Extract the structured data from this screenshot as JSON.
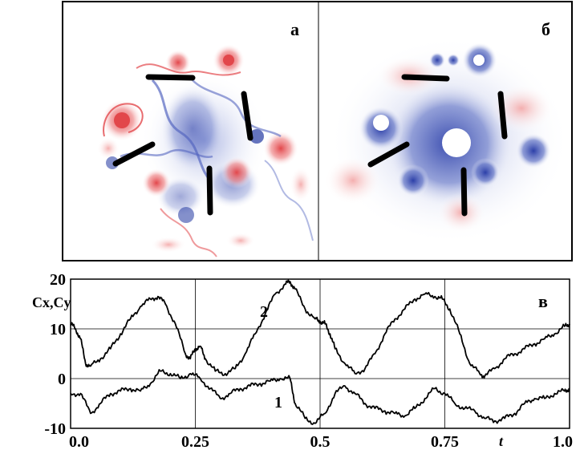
{
  "panels": {
    "a": {
      "letter": "а"
    },
    "b": {
      "letter": "б"
    }
  },
  "colors": {
    "positive": "#e2474b",
    "negative": "#3246a8",
    "plate": "#000000",
    "background": "#ffffff",
    "grid": "#000000"
  },
  "chart_data": {
    "type": "line",
    "panel_letter": "в",
    "ylabel": "Cx,Cy",
    "xlabel": "t",
    "xlim": [
      0.0,
      1.0
    ],
    "ylim": [
      -10,
      20
    ],
    "x_ticks": [
      "0.0",
      "0.25",
      "0.5",
      "0.75",
      "1.0"
    ],
    "y_ticks": [
      "-10",
      "0",
      "10",
      "20"
    ],
    "grid": true,
    "series": [
      {
        "name": "2",
        "x": [
          0.0,
          0.01,
          0.02,
          0.03,
          0.04,
          0.06,
          0.08,
          0.1,
          0.12,
          0.14,
          0.16,
          0.175,
          0.19,
          0.21,
          0.23,
          0.24,
          0.25,
          0.26,
          0.27,
          0.29,
          0.31,
          0.33,
          0.35,
          0.37,
          0.39,
          0.41,
          0.43,
          0.44,
          0.45,
          0.47,
          0.49,
          0.5,
          0.51,
          0.52,
          0.53,
          0.55,
          0.57,
          0.59,
          0.61,
          0.63,
          0.65,
          0.67,
          0.69,
          0.71,
          0.73,
          0.745,
          0.76,
          0.78,
          0.8,
          0.82,
          0.83,
          0.85,
          0.87,
          0.89,
          0.91,
          0.93,
          0.95,
          0.97,
          0.99,
          1.0
        ],
        "y": [
          11,
          10,
          8,
          3,
          2.5,
          4,
          6,
          9,
          12,
          14.5,
          16,
          16.5,
          15,
          11,
          5,
          4,
          6,
          6.5,
          4,
          1.5,
          1,
          2,
          5,
          9,
          13,
          17,
          19,
          19.5,
          18,
          14,
          12,
          11.5,
          11,
          9,
          6,
          3,
          1,
          2,
          5,
          9,
          12,
          14,
          16,
          17,
          16.5,
          16,
          14,
          9,
          3,
          1,
          0.5,
          2,
          4,
          5,
          6,
          7,
          8,
          9,
          10.5,
          11
        ]
      },
      {
        "name": "1",
        "x": [
          0.0,
          0.02,
          0.04,
          0.06,
          0.08,
          0.1,
          0.12,
          0.14,
          0.16,
          0.18,
          0.2,
          0.22,
          0.24,
          0.26,
          0.28,
          0.3,
          0.32,
          0.34,
          0.36,
          0.38,
          0.4,
          0.42,
          0.44,
          0.45,
          0.47,
          0.49,
          0.51,
          0.53,
          0.55,
          0.57,
          0.59,
          0.61,
          0.63,
          0.65,
          0.67,
          0.69,
          0.71,
          0.73,
          0.75,
          0.77,
          0.79,
          0.81,
          0.83,
          0.85,
          0.87,
          0.89,
          0.91,
          0.93,
          0.95,
          0.97,
          0.99,
          1.0
        ],
        "y": [
          -3,
          -3,
          -7,
          -5,
          -3,
          -2.5,
          -2,
          -2.5,
          -1,
          1.5,
          1,
          0,
          1,
          0,
          -2,
          -4,
          -3,
          -2,
          -1.5,
          -1,
          -0.5,
          0,
          0,
          -5,
          -8,
          -9,
          -7,
          -3,
          -1.5,
          -3,
          -5,
          -6,
          -6.5,
          -7,
          -7.5,
          -6,
          -4,
          -2,
          -3,
          -5,
          -6,
          -6.5,
          -8,
          -8.5,
          -8,
          -7,
          -5,
          -4,
          -4,
          -3,
          -2.5,
          -2
        ]
      }
    ]
  }
}
